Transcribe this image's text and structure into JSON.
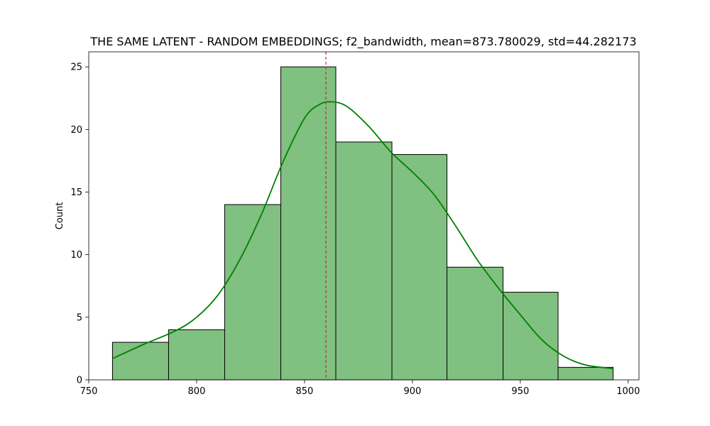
{
  "chart_data": {
    "type": "histogram",
    "title": "THE SAME LATENT - RANDOM EMBEDDINGS; f2_bandwidth, mean=873.780029, std=44.282173",
    "xlabel": "",
    "ylabel": "Count",
    "xlim": [
      750,
      1005
    ],
    "ylim": [
      0,
      26.2
    ],
    "xticks": [
      750,
      800,
      850,
      900,
      950,
      1000
    ],
    "yticks": [
      0,
      5,
      10,
      15,
      20,
      25
    ],
    "bins": [
      {
        "x0": 761,
        "x1": 787,
        "count": 3
      },
      {
        "x0": 787,
        "x1": 813,
        "count": 4
      },
      {
        "x0": 813,
        "x1": 839,
        "count": 14
      },
      {
        "x0": 839,
        "x1": 864.5,
        "count": 25
      },
      {
        "x0": 864.5,
        "x1": 890.5,
        "count": 19
      },
      {
        "x0": 890.5,
        "x1": 916,
        "count": 18
      },
      {
        "x0": 916,
        "x1": 942,
        "count": 9
      },
      {
        "x0": 942,
        "x1": 967.5,
        "count": 7
      },
      {
        "x0": 967.5,
        "x1": 993,
        "count": 1
      }
    ],
    "kde": {
      "x": [
        761,
        775,
        790,
        800,
        810,
        820,
        830,
        840,
        850,
        857,
        863,
        870,
        880,
        890,
        900,
        910,
        920,
        930,
        940,
        950,
        960,
        970,
        980,
        993
      ],
      "y": [
        1.7,
        2.8,
        3.9,
        5.0,
        6.8,
        9.6,
        13.2,
        17.4,
        20.9,
        22.0,
        22.2,
        21.8,
        20.2,
        18.2,
        16.6,
        14.8,
        12.3,
        9.6,
        7.3,
        5.2,
        3.2,
        1.9,
        1.2,
        0.9
      ]
    },
    "vline": {
      "x": 859.9
    },
    "grid": false,
    "colors": {
      "bar_fill": "#80c080",
      "bar_edge": "#000000",
      "kde_line": "#008000",
      "vline": "#d62728"
    }
  }
}
